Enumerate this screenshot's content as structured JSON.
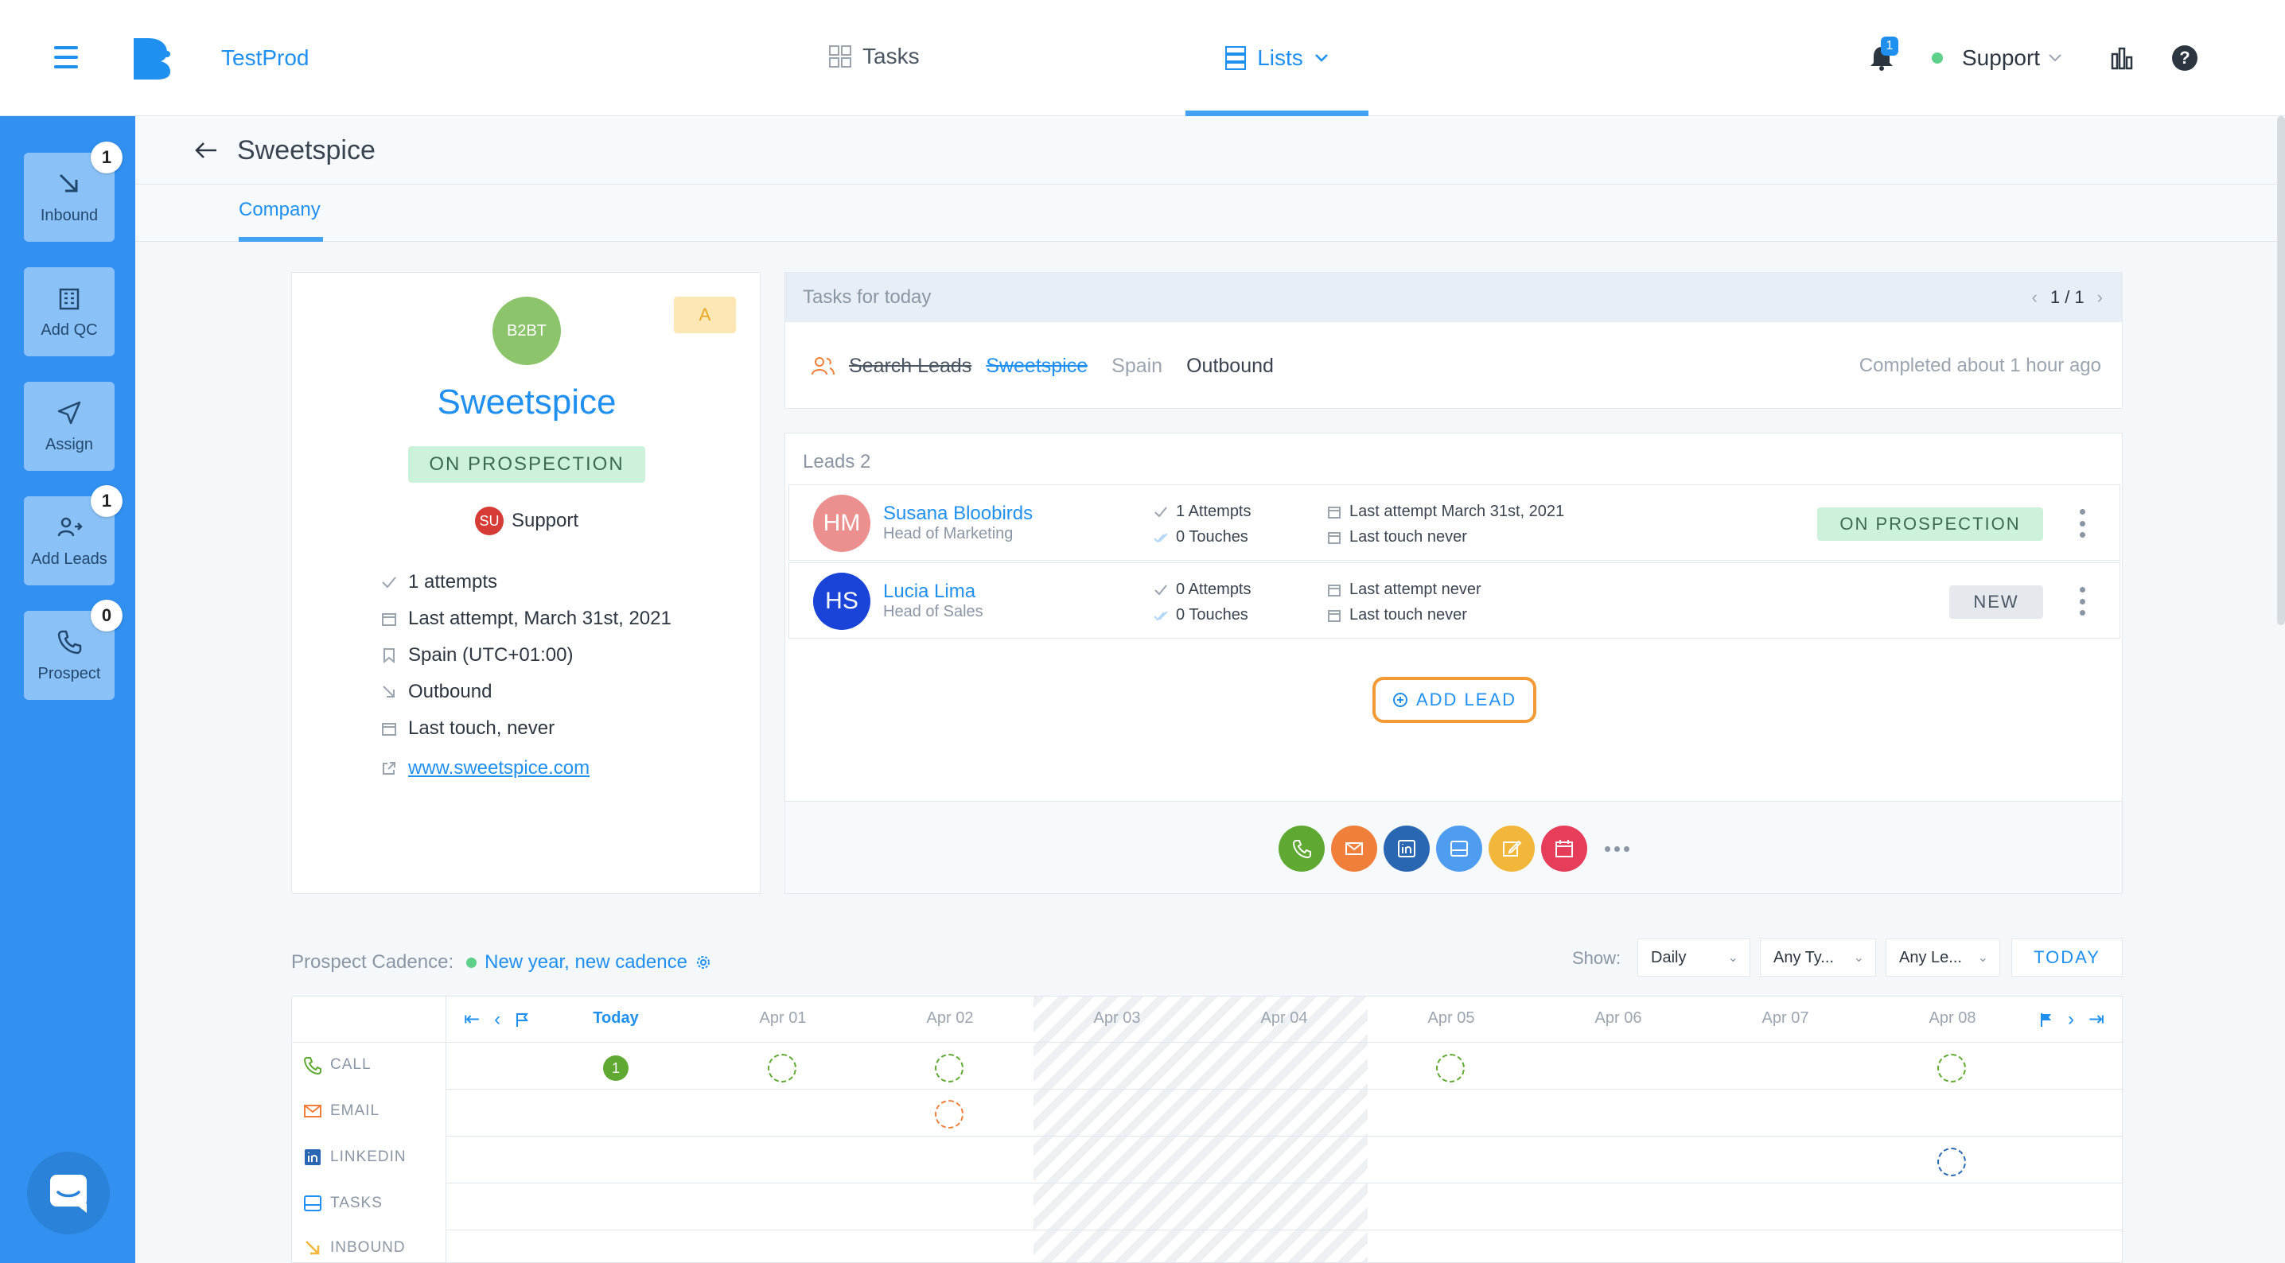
{
  "app": {
    "name": "TestProd",
    "nav": {
      "tasks_label": "Tasks",
      "lists_label": "Lists"
    },
    "notifications_count": "1",
    "user_label": "Support"
  },
  "sidebar": {
    "items": [
      {
        "label": "Inbound",
        "badge": "1",
        "icon": "arrow-down-right-icon"
      },
      {
        "label": "Add QC",
        "badge": "",
        "icon": "building-icon"
      },
      {
        "label": "Assign",
        "badge": "",
        "icon": "send-icon"
      },
      {
        "label": "Add Leads",
        "badge": "1",
        "icon": "user-add-icon"
      },
      {
        "label": "Prospect",
        "badge": "0",
        "icon": "phone-icon"
      }
    ]
  },
  "page": {
    "title": "Sweetspice",
    "tab_company": "Company"
  },
  "company": {
    "avatar_text": "B2BT",
    "grade": "A",
    "name": "Sweetspice",
    "status": "ON PROSPECTION",
    "owner_initials": "SU",
    "owner_name": "Support",
    "info": {
      "attempts": "1 attempts",
      "last_attempt": "Last attempt, March 31st, 2021",
      "country": "Spain (UTC+01:00)",
      "direction": "Outbound",
      "last_touch": "Last touch, never",
      "website": "www.sweetspice.com"
    }
  },
  "tasks_today": {
    "title": "Tasks for today",
    "pager": "1 / 1",
    "task": {
      "name": "Search Leads",
      "company": "Sweetspice",
      "country": "Spain",
      "type": "Outbound",
      "completed": "Completed about 1 hour ago"
    }
  },
  "leads": {
    "title": "Leads 2",
    "rows": [
      {
        "initials": "HM",
        "avatar_color": "#ec8f8f",
        "name": "Susana Bloobirds",
        "title": "Head of Marketing",
        "attempts": "1 Attempts",
        "touches": "0 Touches",
        "last_attempt": "Last attempt March 31st, 2021",
        "last_touch": "Last touch never",
        "status": "ON PROSPECTION"
      },
      {
        "initials": "HS",
        "avatar_color": "#1a44d8",
        "name": "Lucia Lima",
        "title": "Head of Sales",
        "attempts": "0 Attempts",
        "touches": "0 Touches",
        "last_attempt": "Last attempt never",
        "last_touch": "Last touch never",
        "status": "NEW"
      }
    ],
    "add_lead_label": "ADD LEAD",
    "actions": [
      {
        "name": "call-action",
        "icon": "phone-icon",
        "color": "#5fa832"
      },
      {
        "name": "email-action",
        "icon": "mail-icon",
        "color": "#f07f3c"
      },
      {
        "name": "linkedin-action",
        "icon": "linkedin-icon",
        "color": "#2a67b3"
      },
      {
        "name": "task-action",
        "icon": "window-icon",
        "color": "#4f9df0"
      },
      {
        "name": "note-action",
        "icon": "edit-icon",
        "color": "#f2b63a"
      },
      {
        "name": "meeting-action",
        "icon": "calendar-icon",
        "color": "#e63d5a"
      }
    ]
  },
  "cadence": {
    "label": "Prospect Cadence:",
    "name": "New year, new cadence",
    "show_label": "Show:",
    "filter_period": "Daily",
    "filter_type": "Any Ty...",
    "filter_lead": "Any Le...",
    "today_label": "TODAY",
    "days": [
      "Today",
      "Apr 01",
      "Apr 02",
      "Apr 03",
      "Apr 04",
      "Apr 05",
      "Apr 06",
      "Apr 07",
      "Apr 08"
    ],
    "rows": [
      "CALL",
      "EMAIL",
      "LINKEDIN",
      "TASKS",
      "INBOUND"
    ],
    "today_call_count": "1"
  },
  "colors": {
    "brand": "#1f8ff0",
    "sidebar": "#3190f0",
    "success": "#5fd08a",
    "add_lead_border": "#f29a36"
  }
}
